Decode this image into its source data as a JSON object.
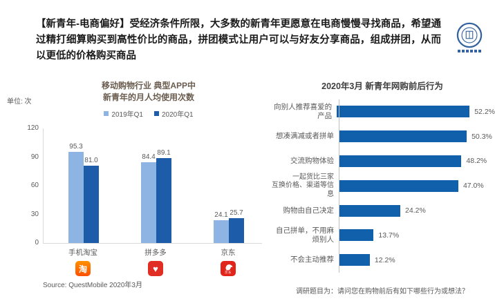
{
  "header": {
    "title": "【新青年-电商偏好】受经济条件所限，大多数的新青年更愿意在电商慢慢寻找商品，希望通过精打细算购买到高性价比的商品，拼团模式让用户可以与好友分享商品，组成拼团，从而以更低的价格购买商品"
  },
  "logo": {
    "icon": "circular-university-seal"
  },
  "chart_data": [
    {
      "type": "bar",
      "orientation": "vertical",
      "title_lines": [
        "移动购物行业 典型APP中",
        "新青年的月人均使用次数"
      ],
      "unit_label": "单位: 次",
      "categories": [
        "手机淘宝",
        "拼多多",
        "京东"
      ],
      "series": [
        {
          "name": "2019年Q1",
          "color": "#8DB4E2",
          "values": [
            95.3,
            84.4,
            24.1
          ],
          "value_labels": [
            "95.3",
            "84.4",
            "24.1"
          ]
        },
        {
          "name": "2020年Q1",
          "color": "#1D5CA8",
          "values": [
            81.0,
            89.1,
            25.7
          ],
          "value_labels": [
            "81.0",
            "89.1",
            "25.7"
          ]
        }
      ],
      "ylim": [
        0,
        120
      ],
      "yticks": [
        0,
        30,
        60,
        90,
        120
      ],
      "grid": false,
      "legend_position": "top",
      "source": "Source:  QuestMobile 2020年3月",
      "app_icons": [
        {
          "name": "taobao-app-icon",
          "char": "淘"
        },
        {
          "name": "pinduoduo-app-icon",
          "char": "♥"
        },
        {
          "name": "jd-app-icon",
          "char": "京东"
        }
      ]
    },
    {
      "type": "bar",
      "orientation": "horizontal",
      "title": "2020年3月 新青年网购前后行为",
      "categories": [
        "向别人推荐喜爱的产品",
        "想凑满减或者拼单",
        "交流购物体验",
        "一起货比三家\n互换价格、渠道等信息",
        "购物由自己决定",
        "自己拼单，不用麻烦别人",
        "不会主动推荐"
      ],
      "values": [
        52.2,
        50.3,
        48.2,
        47.0,
        24.2,
        13.7,
        12.2
      ],
      "value_labels": [
        "52.2%",
        "50.3%",
        "48.2%",
        "47.0%",
        "24.2%",
        "13.7%",
        "12.2%"
      ],
      "bar_color": "#1160AC",
      "xlim": [
        0,
        60
      ],
      "footnote": "调研题目为：请问您在购物前后有如下哪些行为或想法？"
    }
  ]
}
